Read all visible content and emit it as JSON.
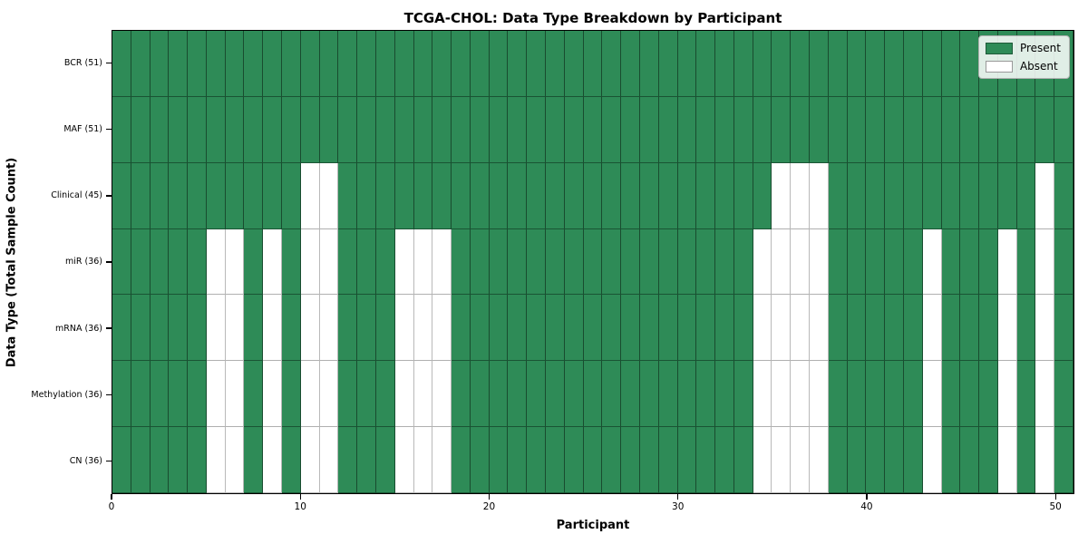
{
  "title": "TCGA-CHOL: Data Type Breakdown by Participant",
  "legend": {
    "present_label": "Present",
    "absent_label": "Absent",
    "position": "upper right"
  },
  "colors": {
    "present": "#2e8b57",
    "absent": "#ffffff",
    "grid_on_green": "rgba(0,0,0,0.45)",
    "grid_on_white": "#b9b9b9",
    "frame": "#000000"
  },
  "chart_data": {
    "type": "heatmap",
    "title": "TCGA-CHOL: Data Type Breakdown by Participant",
    "xlabel": "Participant",
    "ylabel": "Data Type (Total Sample Count)",
    "x_range": [
      0,
      51
    ],
    "n_participants": 51,
    "x_ticks": [
      0,
      10,
      20,
      30,
      40,
      50
    ],
    "grid": true,
    "legend_entries": [
      "Present",
      "Absent"
    ],
    "cell_values": "1 = present (green), 0 = absent (white)",
    "rows": [
      {
        "label": "BCR (51)",
        "data_type": "BCR",
        "total": 51,
        "absent": []
      },
      {
        "label": "MAF (51)",
        "data_type": "MAF",
        "total": 51,
        "absent": []
      },
      {
        "label": "Clinical (45)",
        "data_type": "Clinical",
        "total": 45,
        "absent": [
          10,
          11,
          35,
          36,
          37,
          49
        ]
      },
      {
        "label": "miR (36)",
        "data_type": "miR",
        "total": 36,
        "absent": [
          5,
          6,
          8,
          10,
          11,
          15,
          16,
          17,
          34,
          35,
          36,
          37,
          43,
          47,
          49
        ]
      },
      {
        "label": "mRNA (36)",
        "data_type": "mRNA",
        "total": 36,
        "absent": [
          5,
          6,
          8,
          10,
          11,
          15,
          16,
          17,
          34,
          35,
          36,
          37,
          43,
          47,
          49
        ]
      },
      {
        "label": "Methylation (36)",
        "data_type": "Methylation",
        "total": 36,
        "absent": [
          5,
          6,
          8,
          10,
          11,
          15,
          16,
          17,
          34,
          35,
          36,
          37,
          43,
          47,
          49
        ]
      },
      {
        "label": "CN (36)",
        "data_type": "CN",
        "total": 36,
        "absent": [
          5,
          6,
          8,
          10,
          11,
          15,
          16,
          17,
          34,
          35,
          36,
          37,
          43,
          47,
          49
        ]
      }
    ]
  }
}
